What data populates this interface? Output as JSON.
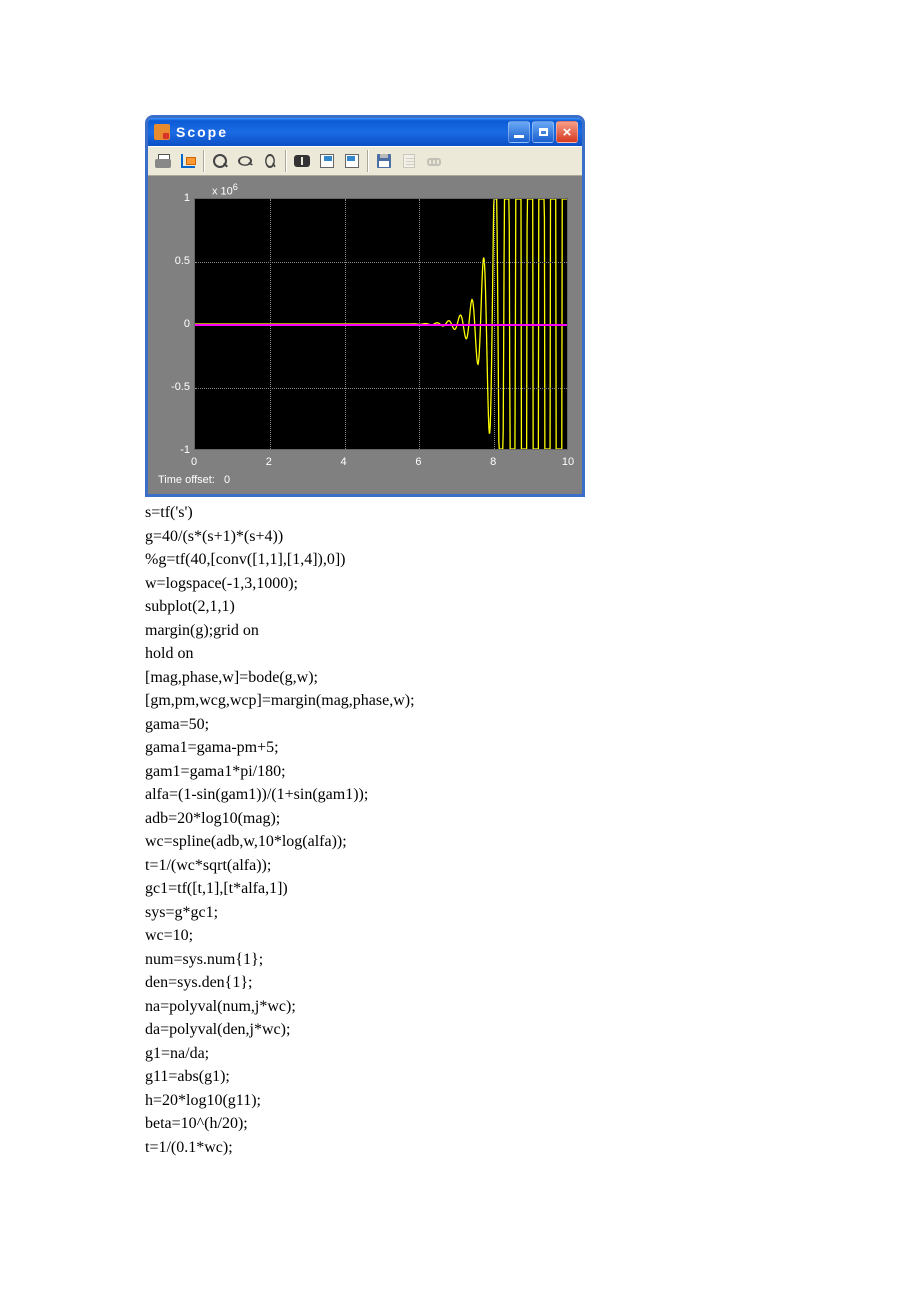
{
  "window": {
    "title": "Scope",
    "titlebar_bg_top": "#3a95ff",
    "titlebar_bg_bottom": "#0c4fc4",
    "close_bg": "#d43a20",
    "button_bg": "#1a5fce",
    "frame_color": "#3a6ec9",
    "chrome_bg": "#ece9d8"
  },
  "toolbar": {
    "buttons": [
      {
        "name": "print-icon",
        "interactable": true
      },
      {
        "name": "parameters-icon",
        "interactable": true
      },
      {
        "sep": true
      },
      {
        "name": "zoom-in-icon",
        "interactable": true
      },
      {
        "name": "zoom-x-icon",
        "interactable": true
      },
      {
        "name": "zoom-y-icon",
        "interactable": true
      },
      {
        "sep": true
      },
      {
        "name": "autoscale-icon",
        "interactable": true
      },
      {
        "name": "save-config-icon",
        "interactable": true
      },
      {
        "name": "restore-config-icon",
        "interactable": true
      },
      {
        "sep": true
      },
      {
        "name": "floppy-icon",
        "interactable": true
      },
      {
        "name": "doc-icon",
        "interactable": false,
        "disabled": true
      },
      {
        "name": "unlink-icon",
        "interactable": false,
        "disabled": true
      }
    ]
  },
  "scope": {
    "background": "#808080",
    "plot_bg": "#000000",
    "grid_color": "#888888",
    "tick_color": "#ffffff",
    "tick_fontsize": 11,
    "exp_label": "x 10",
    "exp_power": "6",
    "xlim": [
      0,
      10
    ],
    "ylim": [
      -1,
      1
    ],
    "xticks": [
      0,
      2,
      4,
      6,
      8,
      10
    ],
    "yticks": [
      -1,
      -0.5,
      0,
      0.5,
      1
    ],
    "ytick_labels": [
      "-1",
      "-0.5",
      "0",
      "0.5",
      "1"
    ],
    "time_offset_label": "Time offset:",
    "time_offset_value": "0",
    "zero_line_color": "#ff00ff",
    "signal_color": "#ffff00",
    "signal": {
      "type": "growing-oscillation",
      "start_x": 5.8,
      "x_range": [
        5.8,
        10
      ],
      "freq_hz": 3.2,
      "growth": 1.95,
      "amp0": 0.001,
      "sample_count": 360
    }
  },
  "code_lines": [
    "s=tf('s')",
    "g=40/(s*(s+1)*(s+4))",
    "%g=tf(40,[conv([1,1],[1,4]),0])",
    "w=logspace(-1,3,1000);",
    "subplot(2,1,1)",
    "margin(g);grid on",
    "hold on",
    "[mag,phase,w]=bode(g,w);",
    "[gm,pm,wcg,wcp]=margin(mag,phase,w);",
    "gama=50;",
    "gama1=gama-pm+5;",
    "gam1=gama1*pi/180;",
    "alfa=(1-sin(gam1))/(1+sin(gam1));",
    "adb=20*log10(mag);",
    "wc=spline(adb,w,10*log(alfa));",
    "t=1/(wc*sqrt(alfa));",
    "gc1=tf([t,1],[t*alfa,1])",
    "sys=g*gc1;",
    "wc=10;",
    "num=sys.num{1};",
    "den=sys.den{1};",
    "na=polyval(num,j*wc);",
    "da=polyval(den,j*wc);",
    "g1=na/da;",
    "g11=abs(g1);",
    "h=20*log10(g11);",
    "beta=10^(h/20);",
    "t=1/(0.1*wc);"
  ]
}
